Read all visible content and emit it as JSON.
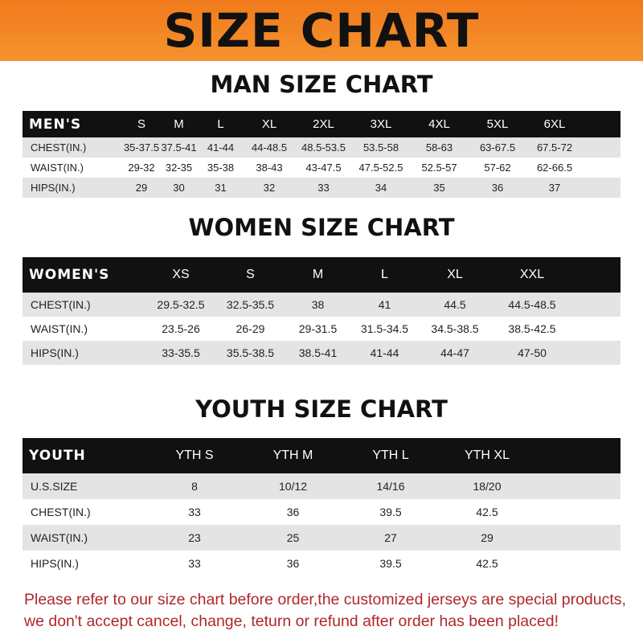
{
  "banner": "SIZE CHART",
  "men": {
    "title": "MAN SIZE CHART",
    "header": [
      "MEN'S",
      "S",
      "M",
      "L",
      "XL",
      "2XL",
      "3XL",
      "4XL",
      "5XL",
      "6XL"
    ],
    "rows": [
      [
        "CHEST(IN.)",
        "35-37.5",
        "37.5-41",
        "41-44",
        "44-48.5",
        "48.5-53.5",
        "53.5-58",
        "58-63",
        "63-67.5",
        "67.5-72"
      ],
      [
        "WAIST(IN.)",
        "29-32",
        "32-35",
        "35-38",
        "38-43",
        "43-47.5",
        "47.5-52.5",
        "52.5-57",
        "57-62",
        "62-66.5"
      ],
      [
        "HIPS(IN.)",
        "29",
        "30",
        "31",
        "32",
        "33",
        "34",
        "35",
        "36",
        "37"
      ]
    ]
  },
  "women": {
    "title": "WOMEN SIZE CHART",
    "header": [
      "WOMEN'S",
      "XS",
      "S",
      "M",
      "L",
      "XL",
      "XXL"
    ],
    "rows": [
      [
        "CHEST(IN.)",
        "29.5-32.5",
        "32.5-35.5",
        "38",
        "41",
        "44.5",
        "44.5-48.5"
      ],
      [
        "WAIST(IN.)",
        "23.5-26",
        "26-29",
        "29-31.5",
        "31.5-34.5",
        "34.5-38.5",
        "38.5-42.5"
      ],
      [
        "HIPS(IN.)",
        "33-35.5",
        "35.5-38.5",
        "38.5-41",
        "41-44",
        "44-47",
        "47-50"
      ]
    ]
  },
  "youth": {
    "title": "YOUTH SIZE CHART",
    "header": [
      "YOUTH",
      "YTH S",
      "YTH M",
      "YTH L",
      "YTH XL"
    ],
    "rows": [
      [
        "U.S.SIZE",
        "8",
        "10/12",
        "14/16",
        "18/20"
      ],
      [
        "CHEST(IN.)",
        "33",
        "36",
        "39.5",
        "42.5"
      ],
      [
        "WAIST(IN.)",
        "23",
        "25",
        "27",
        "29"
      ],
      [
        "HIPS(IN.)",
        "33",
        "36",
        "39.5",
        "42.5"
      ]
    ]
  },
  "note": "Please refer to our size chart before order,the customized jerseys are special products, we don't accept cancel, change, teturn or refund after order has been placed!",
  "colors": {
    "banner": "#f07a1c",
    "header": "#111111",
    "note": "#b0272a"
  }
}
